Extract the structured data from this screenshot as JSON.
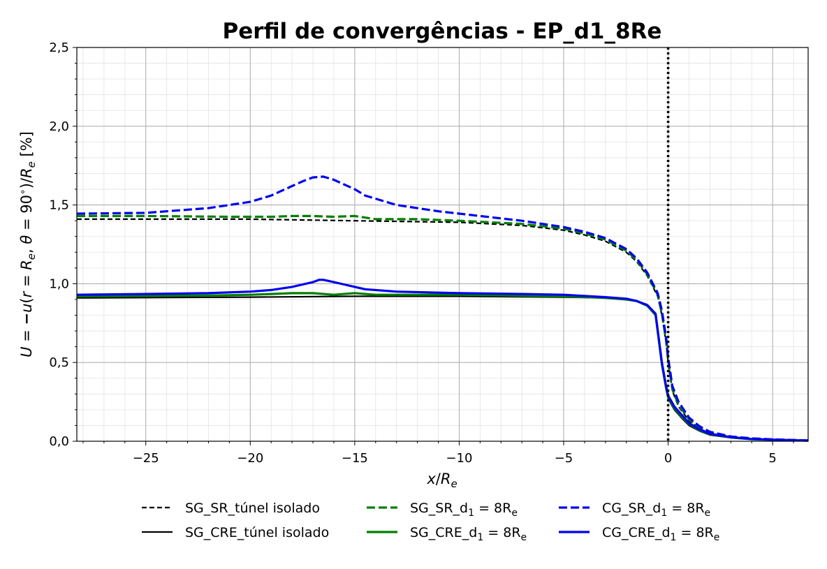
{
  "chart_data": {
    "type": "line",
    "title": "Perfil de convergências - EP_d1_8Re",
    "xlabel": "x/Re",
    "ylabel": "U = −u(r = Re, θ = 90°)/Re [%]",
    "xlim": [
      -28.3,
      6.7
    ],
    "ylim": [
      0.0,
      2.5
    ],
    "x_ticks": [
      -25,
      -20,
      -15,
      -10,
      -5,
      0,
      5
    ],
    "x_tick_labels": [
      "−25",
      "−20",
      "−15",
      "−10",
      "−5",
      "0",
      "5"
    ],
    "y_ticks": [
      0.0,
      0.5,
      1.0,
      1.5,
      2.0,
      2.5
    ],
    "y_tick_labels": [
      "0,0",
      "0,5",
      "1,0",
      "1,5",
      "2,0",
      "2,5"
    ],
    "grid": "major and minor",
    "vertical_reference_line": 0,
    "legend_position": "bottom",
    "series": [
      {
        "name": "SG_SR_túnel isolado",
        "color": "#000000",
        "dash": "dashed",
        "x": [
          -28.3,
          -20,
          -15,
          -10,
          -7,
          -5,
          -4,
          -3,
          -2,
          -1.5,
          -1,
          -0.5,
          -0.3,
          -0.1,
          0,
          0.2,
          0.5,
          1,
          1.5,
          2,
          3,
          4,
          5,
          6,
          6.7
        ],
        "y": [
          1.41,
          1.41,
          1.4,
          1.39,
          1.37,
          1.34,
          1.31,
          1.27,
          1.2,
          1.14,
          1.05,
          0.92,
          0.8,
          0.63,
          0.5,
          0.32,
          0.22,
          0.13,
          0.08,
          0.05,
          0.025,
          0.015,
          0.01,
          0.006,
          0.004
        ]
      },
      {
        "name": "SG_CRE_túnel isolado",
        "color": "#000000",
        "dash": "solid",
        "x": [
          -28.3,
          -20,
          -15,
          -10,
          -5,
          -3,
          -2,
          -1.5,
          -1,
          -0.6,
          -0.3,
          -0.1,
          0,
          0.3,
          0.7,
          1,
          1.5,
          2,
          3,
          4,
          5,
          6,
          6.7
        ],
        "y": [
          0.91,
          0.915,
          0.92,
          0.92,
          0.915,
          0.91,
          0.9,
          0.89,
          0.86,
          0.8,
          0.48,
          0.33,
          0.27,
          0.2,
          0.14,
          0.1,
          0.065,
          0.04,
          0.022,
          0.012,
          0.008,
          0.005,
          0.003
        ]
      },
      {
        "name": "SG_SR_d1 = 8Re",
        "color": "#008000",
        "dash": "dashed",
        "x": [
          -28.3,
          -25,
          -21,
          -19,
          -18,
          -17,
          -16,
          -15,
          -14,
          -12,
          -10,
          -7,
          -5,
          -4,
          -3,
          -2,
          -1.5,
          -1,
          -0.5,
          -0.3,
          -0.1,
          0,
          0.2,
          0.5,
          1,
          1.5,
          2,
          3,
          4,
          5,
          6,
          6.7
        ],
        "y": [
          1.43,
          1.43,
          1.425,
          1.425,
          1.43,
          1.43,
          1.425,
          1.43,
          1.41,
          1.41,
          1.4,
          1.38,
          1.35,
          1.32,
          1.28,
          1.21,
          1.15,
          1.06,
          0.93,
          0.81,
          0.64,
          0.51,
          0.33,
          0.23,
          0.14,
          0.085,
          0.055,
          0.028,
          0.017,
          0.011,
          0.007,
          0.005
        ]
      },
      {
        "name": "SG_CRE_d1 = 8Re",
        "color": "#008000",
        "dash": "solid",
        "x": [
          -28.3,
          -22,
          -20,
          -19,
          -18,
          -17,
          -16,
          -15,
          -14,
          -12,
          -10,
          -5,
          -3,
          -2,
          -1.5,
          -1,
          -0.6,
          -0.3,
          -0.1,
          0,
          0.3,
          0.7,
          1,
          1.5,
          2,
          3,
          4,
          5,
          6,
          6.7
        ],
        "y": [
          0.92,
          0.925,
          0.93,
          0.935,
          0.94,
          0.94,
          0.93,
          0.94,
          0.93,
          0.93,
          0.93,
          0.92,
          0.91,
          0.9,
          0.89,
          0.86,
          0.8,
          0.49,
          0.34,
          0.28,
          0.21,
          0.15,
          0.11,
          0.07,
          0.045,
          0.024,
          0.013,
          0.009,
          0.006,
          0.004
        ]
      },
      {
        "name": "CG_SR_d1 = 8Re",
        "color": "#0000ee",
        "dash": "dashed",
        "x": [
          -28.3,
          -25,
          -22,
          -20,
          -19,
          -18,
          -17.5,
          -17,
          -16.5,
          -16,
          -15.5,
          -15,
          -14.5,
          -13,
          -11,
          -9,
          -7,
          -5,
          -4,
          -3,
          -2,
          -1.5,
          -1,
          -0.5,
          -0.3,
          -0.1,
          0,
          0.2,
          0.5,
          1,
          1.5,
          2,
          3,
          4,
          5,
          6,
          6.7
        ],
        "y": [
          1.445,
          1.45,
          1.48,
          1.52,
          1.56,
          1.62,
          1.65,
          1.675,
          1.68,
          1.66,
          1.63,
          1.6,
          1.56,
          1.5,
          1.46,
          1.43,
          1.4,
          1.36,
          1.33,
          1.29,
          1.22,
          1.16,
          1.07,
          0.94,
          0.83,
          0.66,
          0.53,
          0.35,
          0.25,
          0.15,
          0.095,
          0.06,
          0.03,
          0.018,
          0.012,
          0.008,
          0.005
        ]
      },
      {
        "name": "CG_CRE_d1 = 8Re",
        "color": "#0000ee",
        "dash": "solid",
        "x": [
          -28.3,
          -25,
          -22,
          -20,
          -19,
          -18,
          -17.5,
          -17,
          -16.7,
          -16.5,
          -16,
          -15.5,
          -15,
          -14.5,
          -13,
          -10,
          -7,
          -5,
          -3,
          -2,
          -1.5,
          -1,
          -0.6,
          -0.3,
          -0.1,
          0,
          0.3,
          0.7,
          1,
          1.5,
          2,
          3,
          4,
          5,
          6,
          6.7
        ],
        "y": [
          0.93,
          0.935,
          0.94,
          0.95,
          0.96,
          0.98,
          0.995,
          1.01,
          1.025,
          1.025,
          1.01,
          0.995,
          0.98,
          0.965,
          0.95,
          0.94,
          0.935,
          0.93,
          0.915,
          0.905,
          0.89,
          0.865,
          0.81,
          0.5,
          0.35,
          0.29,
          0.22,
          0.16,
          0.115,
          0.075,
          0.048,
          0.026,
          0.014,
          0.01,
          0.006,
          0.004
        ]
      }
    ],
    "legend": [
      {
        "main": "SG_SR_túnel isolado",
        "sub": "",
        "color": "#000000",
        "dash": "dashed"
      },
      {
        "main": "SG_SR_d",
        "sub": "1",
        "suffix": " = 8R",
        "sub2": "e",
        "color": "#008000",
        "dash": "dashed"
      },
      {
        "main": "CG_SR_d",
        "sub": "1",
        "suffix": " = 8R",
        "sub2": "e",
        "color": "#0000ee",
        "dash": "dashed"
      },
      {
        "main": "SG_CRE_túnel isolado",
        "sub": "",
        "color": "#000000",
        "dash": "solid"
      },
      {
        "main": "SG_CRE_d",
        "sub": "1",
        "suffix": " = 8R",
        "sub2": "e",
        "color": "#008000",
        "dash": "solid"
      },
      {
        "main": "CG_CRE_d",
        "sub": "1",
        "suffix": " = 8R",
        "sub2": "e",
        "color": "#0000ee",
        "dash": "solid"
      }
    ]
  }
}
